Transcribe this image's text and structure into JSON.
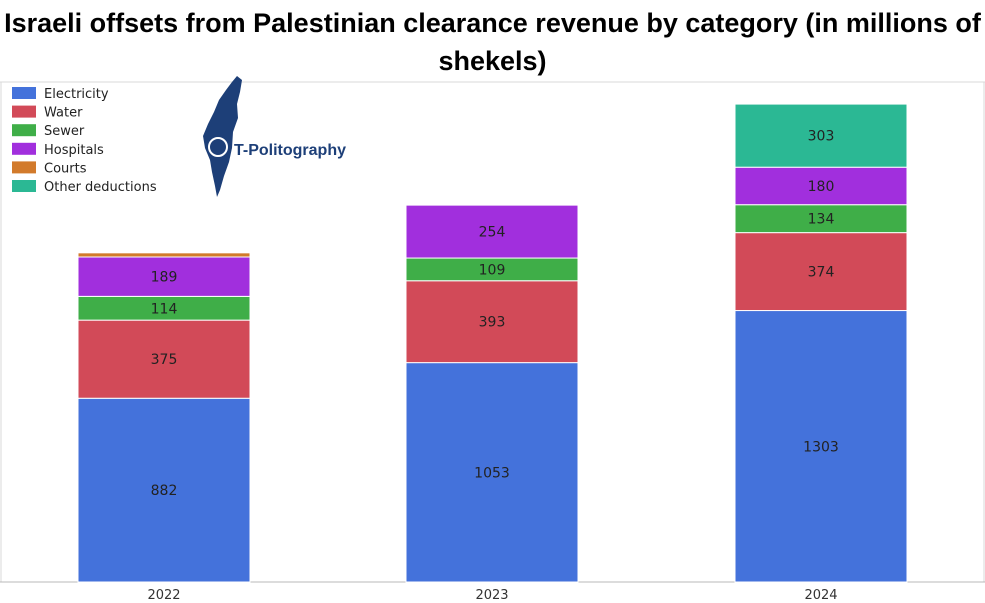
{
  "chart_data": {
    "type": "bar",
    "stacked": true,
    "title": "Israeli offsets from Palestinian clearance revenue by category (in millions of shekels)",
    "categories": [
      "2022",
      "2023",
      "2024"
    ],
    "series": [
      {
        "name": "Electricity",
        "color": "#4472db",
        "values": [
          882,
          1053,
          1303
        ]
      },
      {
        "name": "Water",
        "color": "#d24a58",
        "values": [
          375,
          393,
          374
        ]
      },
      {
        "name": "Sewer",
        "color": "#3fae48",
        "values": [
          114,
          109,
          134
        ]
      },
      {
        "name": "Hospitals",
        "color": "#a12fdd",
        "values": [
          189,
          254,
          180
        ]
      },
      {
        "name": "Courts",
        "color": "#d27a2b",
        "values": [
          20,
          0,
          0
        ]
      },
      {
        "name": "Other deductions",
        "color": "#2bb894",
        "values": [
          0,
          0,
          303
        ]
      }
    ],
    "data_labels": [
      [
        "882",
        "1053",
        "1303"
      ],
      [
        "375",
        "393",
        "374"
      ],
      [
        "114",
        "109",
        "134"
      ],
      [
        "189",
        "254",
        "180"
      ],
      [
        "",
        "",
        ""
      ],
      [
        "",
        "",
        "303"
      ]
    ],
    "ylim": [
      0,
      2400
    ],
    "legend_position": "top-left",
    "grid": false
  },
  "logo": {
    "text": "T-Politography",
    "icon": "israel-map-logo-icon"
  }
}
